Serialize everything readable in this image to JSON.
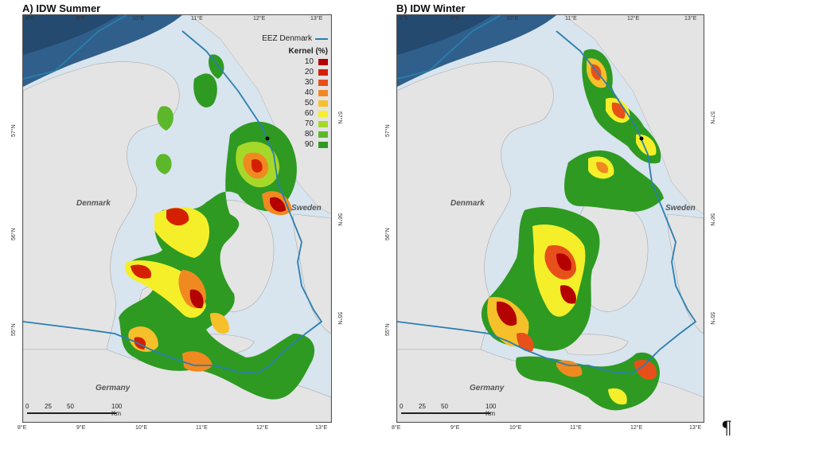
{
  "panels": [
    {
      "title": "A) IDW Summer",
      "lon_ticks": [
        "8°E",
        "9°E",
        "10°E",
        "11°E",
        "12°E",
        "13°E"
      ],
      "lat_ticks": [
        "57°N",
        "56°N",
        "55°N"
      ],
      "places": {
        "denmark": "Denmark",
        "sweden": "Sweden",
        "germany": "Germany"
      },
      "legend": {
        "eez_label": "EEZ Denmark",
        "kernel_title": "Kernel (%)",
        "kernel_levels": [
          "10",
          "20",
          "30",
          "40",
          "50",
          "60",
          "70",
          "80",
          "90"
        ]
      },
      "scalebar": {
        "labels": [
          "0",
          "25",
          "50",
          "100 Km"
        ]
      }
    },
    {
      "title": "B) IDW Winter",
      "lon_ticks": [
        "8°E",
        "9°E",
        "10°E",
        "11°E",
        "12°E",
        "13°E"
      ],
      "lat_ticks": [
        "57°N",
        "56°N",
        "55°N"
      ],
      "places": {
        "denmark": "Denmark",
        "sweden": "Sweden",
        "germany": "Germany"
      },
      "scalebar": {
        "labels": [
          "0",
          "25",
          "50",
          "100 Km"
        ]
      }
    }
  ],
  "colors": {
    "kernel": [
      "#b50000",
      "#d42000",
      "#e8501a",
      "#f08a20",
      "#f6c02a",
      "#f5ef2a",
      "#a6d82a",
      "#5cb82a",
      "#2e9a22"
    ],
    "eez": "#2a7fb0",
    "land": "#e4e4e4",
    "sea": "#d8e4ee"
  },
  "pilcrow": "¶"
}
